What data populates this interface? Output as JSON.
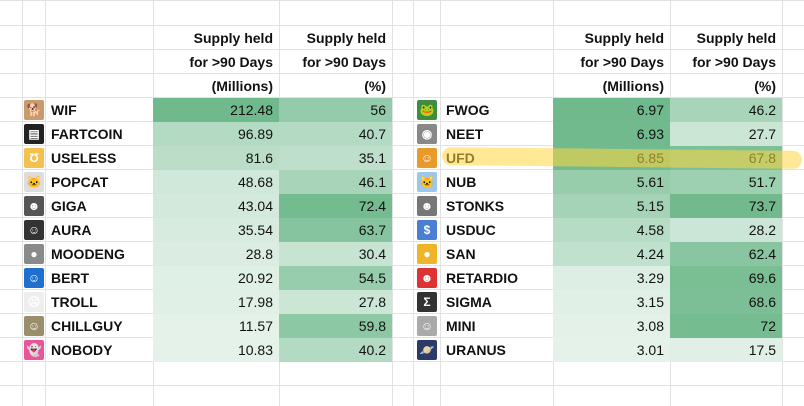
{
  "header": {
    "col1": [
      "Supply held",
      "for >90 Days",
      "(Millions)"
    ],
    "col2": [
      "Supply held",
      "for >90 Days",
      "(%)"
    ]
  },
  "left_table": [
    {
      "name": "WIF",
      "icon": "dog-hat-icon",
      "supply": "212.48",
      "pct": "56"
    },
    {
      "name": "FARTCOIN",
      "icon": "fartcoin-icon",
      "supply": "96.89",
      "pct": "40.7"
    },
    {
      "name": "USELESS",
      "icon": "useless-logo-icon",
      "supply": "81.6",
      "pct": "35.1"
    },
    {
      "name": "POPCAT",
      "icon": "cat-icon",
      "supply": "48.68",
      "pct": "46.1"
    },
    {
      "name": "GIGA",
      "icon": "giga-face-icon",
      "supply": "43.04",
      "pct": "72.4"
    },
    {
      "name": "AURA",
      "icon": "aura-icon",
      "supply": "35.54",
      "pct": "63.7"
    },
    {
      "name": "MOODENG",
      "icon": "hippo-icon",
      "supply": "28.8",
      "pct": "30.4"
    },
    {
      "name": "BERT",
      "icon": "bert-icon",
      "supply": "20.92",
      "pct": "54.5"
    },
    {
      "name": "TROLL",
      "icon": "troll-face-icon",
      "supply": "17.98",
      "pct": "27.8"
    },
    {
      "name": "CHILLGUY",
      "icon": "chill-dog-icon",
      "supply": "11.57",
      "pct": "59.8"
    },
    {
      "name": "NOBODY",
      "icon": "ghost-icon",
      "supply": "10.83",
      "pct": "40.2"
    }
  ],
  "right_table": [
    {
      "name": "FWOG",
      "icon": "frog-icon",
      "supply": "6.97",
      "pct": "46.2"
    },
    {
      "name": "NEET",
      "icon": "neet-icon",
      "supply": "6.93",
      "pct": "27.7"
    },
    {
      "name": "UFD",
      "icon": "ufd-icon",
      "supply": "6.85",
      "pct": "67.8"
    },
    {
      "name": "NUB",
      "icon": "nub-cat-icon",
      "supply": "5.61",
      "pct": "51.7"
    },
    {
      "name": "STONKS",
      "icon": "stonks-man-icon",
      "supply": "5.15",
      "pct": "73.7"
    },
    {
      "name": "USDUC",
      "icon": "usduc-icon",
      "supply": "4.58",
      "pct": "28.2"
    },
    {
      "name": "SAN",
      "icon": "coin-icon",
      "supply": "4.24",
      "pct": "62.4"
    },
    {
      "name": "RETARDIO",
      "icon": "retardio-face-icon",
      "supply": "3.29",
      "pct": "69.6"
    },
    {
      "name": "SIGMA",
      "icon": "sigma-face-icon",
      "supply": "3.15",
      "pct": "68.6"
    },
    {
      "name": "MINI",
      "icon": "mini-icon",
      "supply": "3.08",
      "pct": "72"
    },
    {
      "name": "URANUS",
      "icon": "planet-icon",
      "supply": "3.01",
      "pct": "17.5"
    }
  ],
  "highlighted_row": "UFD",
  "colors": {
    "highlight": "#ffd740",
    "grid": "#e2e2e2",
    "scale_low": "#ffffff",
    "scale_high": "#6fb98c"
  }
}
